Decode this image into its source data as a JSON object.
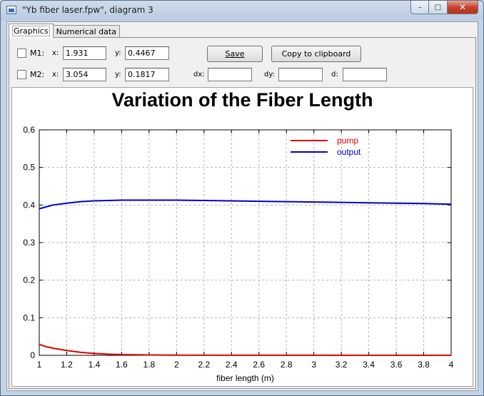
{
  "window": {
    "title": "\"Yb fiber laser.fpw\", diagram 3",
    "minimize_glyph": "–",
    "maximize_glyph": "□",
    "close_glyph": "✕"
  },
  "tabs": [
    {
      "label": "Graphics",
      "active": true
    },
    {
      "label": "Numerical data",
      "active": false
    }
  ],
  "markers": {
    "m1": {
      "label": "M1:",
      "x_label": "x:",
      "x": "1.931",
      "y_label": "y:",
      "y": "0.4467",
      "checked": false
    },
    "m2": {
      "label": "M2:",
      "x_label": "x:",
      "x": "3.054",
      "y_label": "y:",
      "y": "0.1817",
      "checked": false
    }
  },
  "deltas": {
    "dx_label": "dx:",
    "dx": "",
    "dy_label": "dy:",
    "dy": "",
    "d_label": "d:",
    "d": ""
  },
  "buttons": {
    "save": "Save",
    "copy": "Copy to clipboard"
  },
  "chart_data": {
    "type": "line",
    "title": "Variation of the Fiber Length",
    "xlabel": "fiber length (m)",
    "ylabel": "",
    "xlim": [
      1,
      4
    ],
    "ylim": [
      0,
      0.6
    ],
    "xticks": [
      1,
      1.2,
      1.4,
      1.6,
      1.8,
      2,
      2.2,
      2.4,
      2.6,
      2.8,
      3,
      3.2,
      3.4,
      3.6,
      3.8,
      4
    ],
    "xtick_labels": [
      "1",
      "1.2",
      "1.4",
      "1.6",
      "1.8",
      "2",
      "2.2",
      "2.4",
      "2.6",
      "2.8",
      "3",
      "3.2",
      "3.4",
      "3.6",
      "3.8",
      "4"
    ],
    "yticks": [
      0,
      0.1,
      0.2,
      0.3,
      0.4,
      0.5,
      0.6
    ],
    "ytick_labels": [
      "0",
      "0.1",
      "0.2",
      "0.3",
      "0.4",
      "0.5",
      "0.6"
    ],
    "grid": true,
    "legend_position": "top-right",
    "series": [
      {
        "name": "pump",
        "color": "#e00000",
        "x": [
          1,
          1.05,
          1.1,
          1.2,
          1.3,
          1.4,
          1.5,
          1.6,
          1.8,
          2,
          2.5,
          3,
          3.5,
          4
        ],
        "y": [
          0.029,
          0.023,
          0.019,
          0.013,
          0.008,
          0.005,
          0.003,
          0.002,
          0.001,
          0.0005,
          0.0002,
          0.0001,
          0,
          0
        ]
      },
      {
        "name": "output",
        "color": "#0000cc",
        "x": [
          1,
          1.1,
          1.2,
          1.3,
          1.4,
          1.5,
          1.6,
          1.8,
          2,
          2.2,
          2.4,
          2.6,
          2.8,
          3,
          3.2,
          3.4,
          3.6,
          3.8,
          4
        ],
        "y": [
          0.39,
          0.4,
          0.405,
          0.409,
          0.411,
          0.412,
          0.413,
          0.413,
          0.413,
          0.412,
          0.411,
          0.41,
          0.409,
          0.408,
          0.407,
          0.406,
          0.405,
          0.404,
          0.402
        ]
      }
    ]
  }
}
